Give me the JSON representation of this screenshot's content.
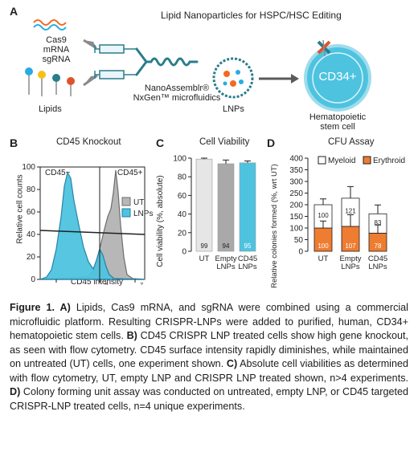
{
  "figure": {
    "panel_a": {
      "letter": "A",
      "title": "Lipid Nanoparticles for HSPC/HSC Editing",
      "inputs_label": "Cas9 mRNA\nsgRNA",
      "inputs_line1": "Cas9 mRNA",
      "inputs_line2": "sgRNA",
      "lipids_label": "Lipids",
      "device_line1": "NanoAssemblr®",
      "device_line2": "NxGen™ microfluidics",
      "lnps_label": "LNPs",
      "cell_marker": "CD34+",
      "cell_line1": "Hematopoietic",
      "cell_line2": "stem cell",
      "colors": {
        "rna_orange": "#f26a21",
        "rna_blue": "#29abe2",
        "cell": "#4ec3e0",
        "cas9": "#e0532a",
        "teal": "#2a7d8c"
      }
    },
    "panel_b": {
      "letter": "B",
      "title": "CD45 Knockout",
      "gate_left": "CD45−",
      "gate_right": "CD45+",
      "ylabel": "Relative cell counts",
      "xlabel": "CD45 intensity",
      "y_ticks": [
        "100",
        "80",
        "60",
        "40",
        "20",
        "0"
      ],
      "x_ticks": [
        "0",
        "10",
        "5",
        "10",
        "7"
      ],
      "legend": [
        {
          "label": "UT",
          "color": "#b7b7b7"
        },
        {
          "label": "LNPs",
          "color": "#4ec3e0"
        }
      ]
    },
    "panel_c": {
      "letter": "C",
      "title": "Cell Viability",
      "ylabel": "Cell viability (%, absolute)"
    },
    "panel_d": {
      "letter": "D",
      "title": "CFU Assay",
      "ylabel": "Relative colonies formed (%, wrt UT)",
      "legend": [
        {
          "label": "Myeloid",
          "color": "#ffffff"
        },
        {
          "label": "Erythroid",
          "color": "#ee7d31"
        }
      ]
    },
    "caption": {
      "part1_label": "Figure 1. A)",
      "part1_text": " Lipids, Cas9 mRNA, and sgRNA were combined using a commercial microfluidic platform. Resulting CRISPR-LNPs were added to purified, human, CD34+ hematopoietic stem cells. ",
      "part2_label": "B)",
      "part2_text": " CD45 CRISPR LNP treated cells show high gene knockout, as seen with flow cytometry. CD45 surface intensity rapidly diminishes, while maintained on untreated (UT) cells, one experiment shown. ",
      "part3_label": "C)",
      "part3_text": " Absolute cell viabilities as determined with flow cytometry, UT, empty LNP and CRISPR LNP treated shown, n>4 experiments. ",
      "part4_label": "D)",
      "part4_text": " Colony forming unit assay was conducted on untreated, empty LNP, or CD45 targeted CRISPR-LNP treated cells, n=4 unique experiments."
    }
  },
  "chart_data": [
    {
      "type": "bar",
      "title": "Cell Viability",
      "ylabel": "Cell viability (%, absolute)",
      "categories": [
        "UT",
        "Empty LNPs",
        "CD45 LNPs"
      ],
      "values": [
        99,
        94,
        95
      ],
      "value_labels": [
        "99",
        "94",
        "95"
      ],
      "errors": [
        1,
        4,
        2
      ],
      "colors": [
        "#e6e6e6",
        "#a9a9a9",
        "#4ec3e0"
      ],
      "ylim": [
        0,
        100
      ],
      "y_ticks": [
        0,
        20,
        40,
        60,
        80,
        100
      ]
    },
    {
      "type": "bar",
      "title": "CFU Assay",
      "ylabel": "Relative colonies formed (%, wrt UT)",
      "categories": [
        "UT",
        "Empty LNPs",
        "CD45 LNPs"
      ],
      "stacked": true,
      "series": [
        {
          "name": "Erythroid",
          "values": [
            100,
            107,
            78
          ],
          "labels": [
            "100",
            "107",
            "78"
          ],
          "color": "#ee7d31",
          "errors": [
            30,
            50,
            35
          ]
        },
        {
          "name": "Myeloid",
          "values": [
            100,
            121,
            83
          ],
          "labels": [
            "100",
            "121",
            "83"
          ],
          "color": "#ffffff",
          "errors": [
            25,
            50,
            38
          ]
        }
      ],
      "ylim": [
        0,
        400
      ],
      "y_ticks": [
        0,
        50,
        100,
        150,
        200,
        250,
        300,
        350,
        400
      ]
    }
  ]
}
